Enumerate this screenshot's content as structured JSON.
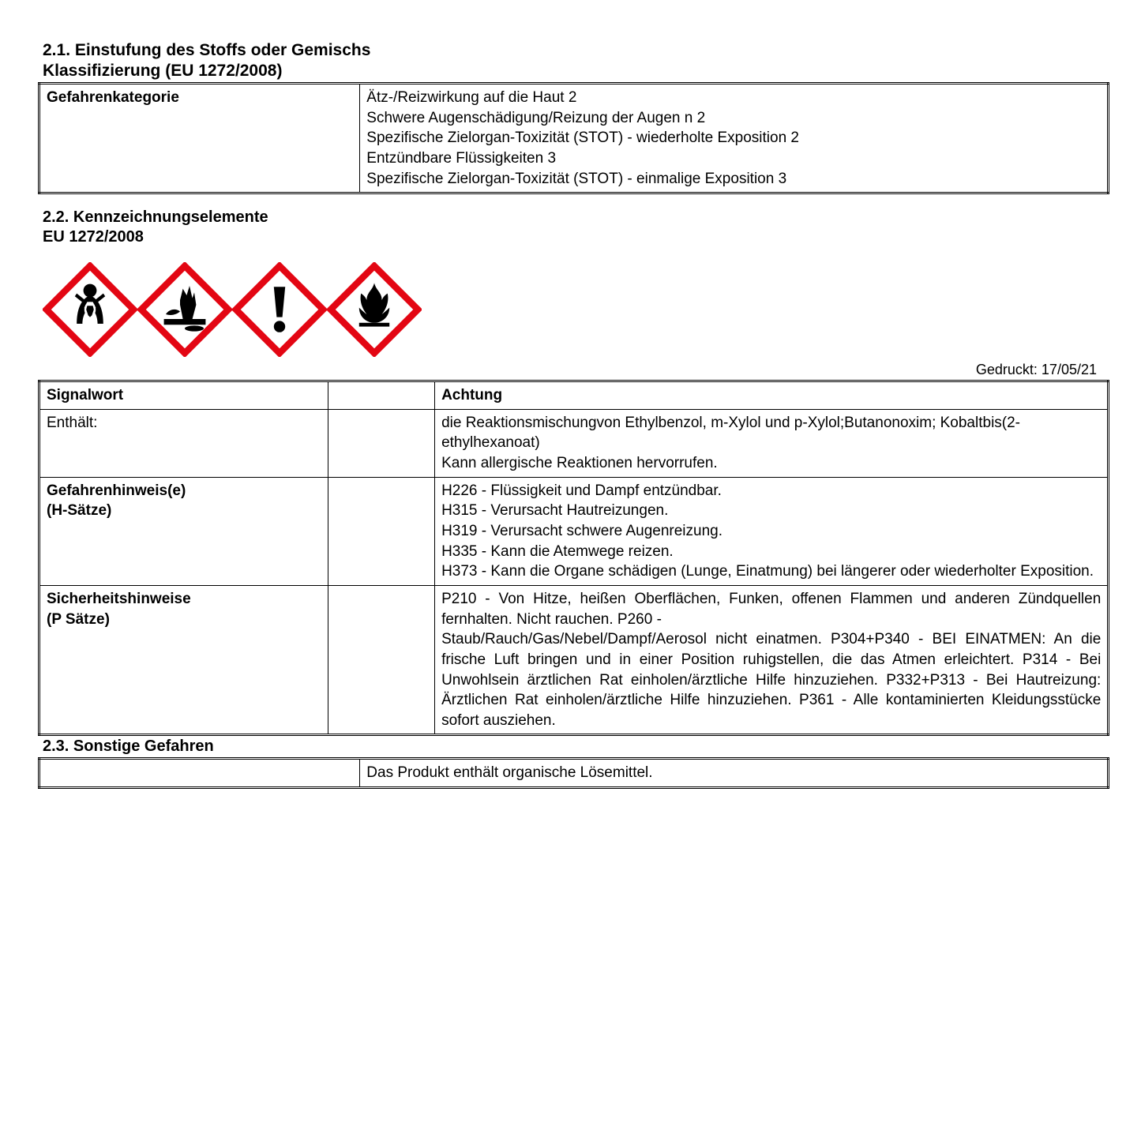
{
  "section21": {
    "title": "2.1. Einstufung des Stoffs oder Gemischs",
    "subtitle": "Klassifizierung (EU 1272/2008)"
  },
  "table1": {
    "label": "Gefahrenkategorie",
    "value": "Ätz-/Reizwirkung auf die Haut  2\nSchwere Augenschädigung/Reizung der Augen n 2\nSpezifische Zielorgan-Toxizität (STOT) - wiederholte Exposition  2\nEntzündbare Flüssigkeiten 3\nSpezifische Zielorgan-Toxizität (STOT) - einmalige Exposition 3"
  },
  "section22": {
    "title": "2.2. Kennzeichnungselemente",
    "subtitle": "EU 1272/2008"
  },
  "pictograms": {
    "border_color": "#e30613",
    "fill_color": "#ffffff",
    "icon_color": "#000000",
    "items": [
      "health-hazard",
      "environment",
      "exclamation",
      "flame"
    ]
  },
  "printed": "Gedruckt: 17/05/21",
  "table2": {
    "rows": [
      {
        "label": "Signalwort",
        "label_bold": true,
        "value": "Achtung",
        "value_bold": true
      },
      {
        "label": "Enthält:",
        "label_bold": false,
        "value": "die Reaktionsmischungvon Ethylbenzol, m-Xylol und p-Xylol;Butanonoxim; Kobaltbis(2-ethylhexanoat)\nKann allergische Reaktionen hervorrufen.",
        "value_bold": false
      },
      {
        "label": "Gefahrenhinweis(e)\n(H-Sätze)",
        "label_bold": true,
        "value": "H226 - Flüssigkeit und Dampf entzündbar.\nH315 - Verursacht Hautreizungen.\nH319 - Verursacht schwere Augenreizung.\nH335 - Kann die Atemwege reizen.\nH373 - Kann die Organe schädigen (Lunge, Einatmung) bei längerer oder wiederholter Exposition.",
        "value_bold": false
      },
      {
        "label": "Sicherheitshinweise\n(P Sätze)",
        "label_bold": true,
        "value": "P210 - Von Hitze, heißen Oberflächen, Funken, offenen Flammen und anderen Zündquellen fernhalten. Nicht rauchen. P260 -\nStaub/Rauch/Gas/Nebel/Dampf/Aerosol nicht einatmen. P304+P340 - BEI EINATMEN: An die frische Luft bringen und in einer Position ruhigstellen, die das Atmen erleichtert. P314 - Bei Unwohlsein ärztlichen Rat einholen/ärztliche Hilfe hinzuziehen. P332+P313 - Bei Hautreizung: Ärztlichen Rat einholen/ärztliche Hilfe hinzuziehen. P361 - Alle kontaminierten Kleidungsstücke sofort ausziehen.",
        "value_bold": false,
        "value_justify": true
      }
    ]
  },
  "section23": {
    "title": "2.3. Sonstige Gefahren"
  },
  "table3": {
    "label": "",
    "value": "Das Produkt enthält organische Lösemittel."
  }
}
